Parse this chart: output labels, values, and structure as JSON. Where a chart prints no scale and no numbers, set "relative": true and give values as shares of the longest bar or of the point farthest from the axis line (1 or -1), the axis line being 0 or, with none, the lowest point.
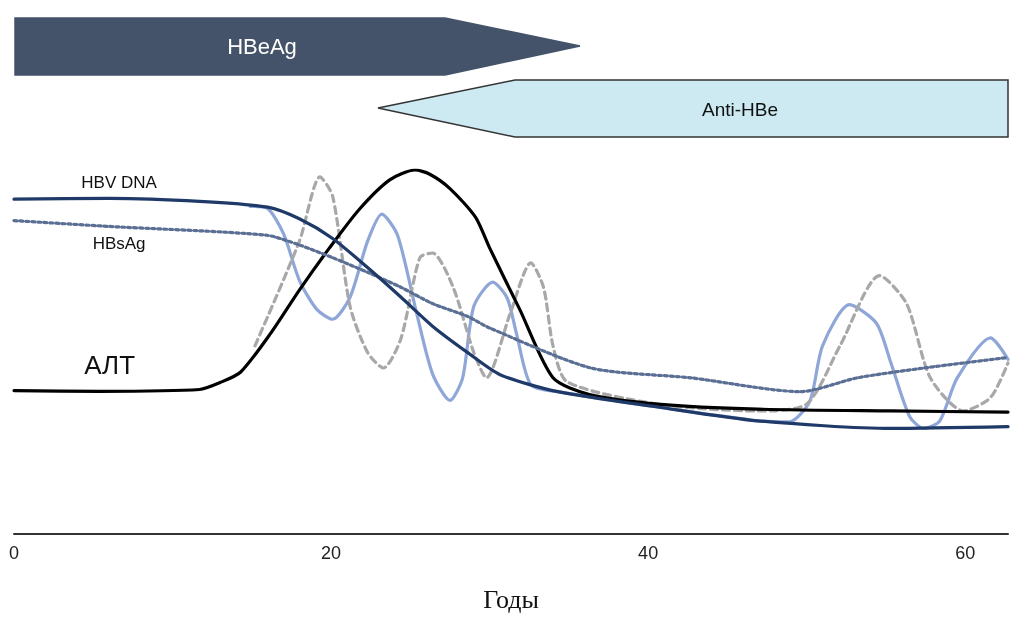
{
  "chart_data": {
    "type": "line",
    "relative": true,
    "marker": "none",
    "xlabel": "Годы",
    "xlim": [
      0,
      62.7
    ],
    "xticks": [
      0,
      20,
      40,
      60
    ],
    "annotations": [
      "HBeAg",
      "Anti-HBe"
    ],
    "series": [
      {
        "name": "HBV DNA",
        "color": "#1f3a68",
        "line_style": "solid",
        "x": [
          0,
          6.0,
          11.7,
          16.0,
          18.0,
          20.1,
          22.3,
          24.4,
          26.4,
          28.6,
          30.7,
          34.3,
          40.6,
          46.9,
          55.3,
          62.7
        ],
        "values": [
          0.92,
          0.922,
          0.914,
          0.898,
          0.866,
          0.812,
          0.732,
          0.651,
          0.571,
          0.499,
          0.437,
          0.391,
          0.349,
          0.311,
          0.29,
          0.295
        ]
      },
      {
        "name": "HBsAg",
        "color": "#5b6f95",
        "line_style": "dotted",
        "x": [
          0,
          6.0,
          15.9,
          18.0,
          20.1,
          22.3,
          24.4,
          26.4,
          28.6,
          30.0,
          36.4,
          42.7,
          49.6,
          53.2,
          57.4,
          62.7
        ],
        "values": [
          0.861,
          0.845,
          0.821,
          0.794,
          0.759,
          0.719,
          0.678,
          0.633,
          0.598,
          0.566,
          0.456,
          0.429,
          0.391,
          0.429,
          0.456,
          0.485
        ]
      },
      {
        "name": "АЛТ",
        "color": "#000000",
        "line_style": "solid",
        "x": [
          0,
          5.4,
          11.7,
          13.0,
          14.3,
          16.2,
          18.0,
          19.9,
          21.8,
          23.7,
          25.3,
          26.2,
          27.5,
          29.1,
          30.0,
          31.9,
          34.0,
          36.3,
          40.6,
          46.9,
          55.3,
          62.7
        ],
        "values": [
          0.394,
          0.392,
          0.397,
          0.416,
          0.445,
          0.552,
          0.67,
          0.786,
          0.893,
          0.973,
          1,
          0.989,
          0.949,
          0.871,
          0.786,
          0.617,
          0.429,
          0.383,
          0.357,
          0.343,
          0.338,
          0.335
        ]
      },
      {
        "color": "#8ea6d8",
        "line_style": "solid",
        "x": [
          14.9,
          15.96,
          17.0,
          18.0,
          19.1,
          20.1,
          21.2,
          22.3,
          23.2,
          24.2,
          25.4,
          26.4,
          27.5,
          28.3,
          29.0,
          30.2,
          31.1,
          31.7,
          32.6,
          34.3,
          40.6,
          46.9,
          48.9,
          50.2,
          51.0,
          52.7,
          54.4,
          55.3,
          56.5,
          57.4,
          58.4,
          59.5,
          61.6,
          62.7
        ],
        "values": [
          0.9,
          0.895,
          0.825,
          0.697,
          0.617,
          0.59,
          0.651,
          0.804,
          0.879,
          0.82,
          0.606,
          0.44,
          0.367,
          0.429,
          0.625,
          0.692,
          0.649,
          0.55,
          0.41,
          0.391,
          0.349,
          0.311,
          0.308,
          0.365,
          0.517,
          0.63,
          0.579,
          0.472,
          0.322,
          0.29,
          0.311,
          0.429,
          0.539,
          0.48
        ]
      },
      {
        "color": "#a8a8a8",
        "line_style": "dashed",
        "x": [
          15.2,
          18.0,
          19.3,
          20.1,
          21.2,
          22.3,
          23.3,
          24.4,
          25.6,
          26.4,
          27.7,
          29.0,
          29.8,
          31.3,
          32.6,
          33.4,
          34.0,
          34.9,
          40.6,
          46.9,
          50.0,
          52.1,
          54.6,
          56.3,
          57.8,
          59.9,
          61.6,
          62.7
        ],
        "values": [
          0.517,
          0.804,
          0.981,
          0.928,
          0.625,
          0.499,
          0.456,
          0.536,
          0.759,
          0.772,
          0.678,
          0.499,
          0.429,
          0.606,
          0.745,
          0.678,
          0.517,
          0.418,
          0.357,
          0.338,
          0.357,
          0.517,
          0.71,
          0.633,
          0.429,
          0.338,
          0.375,
          0.47
        ]
      }
    ]
  }
}
